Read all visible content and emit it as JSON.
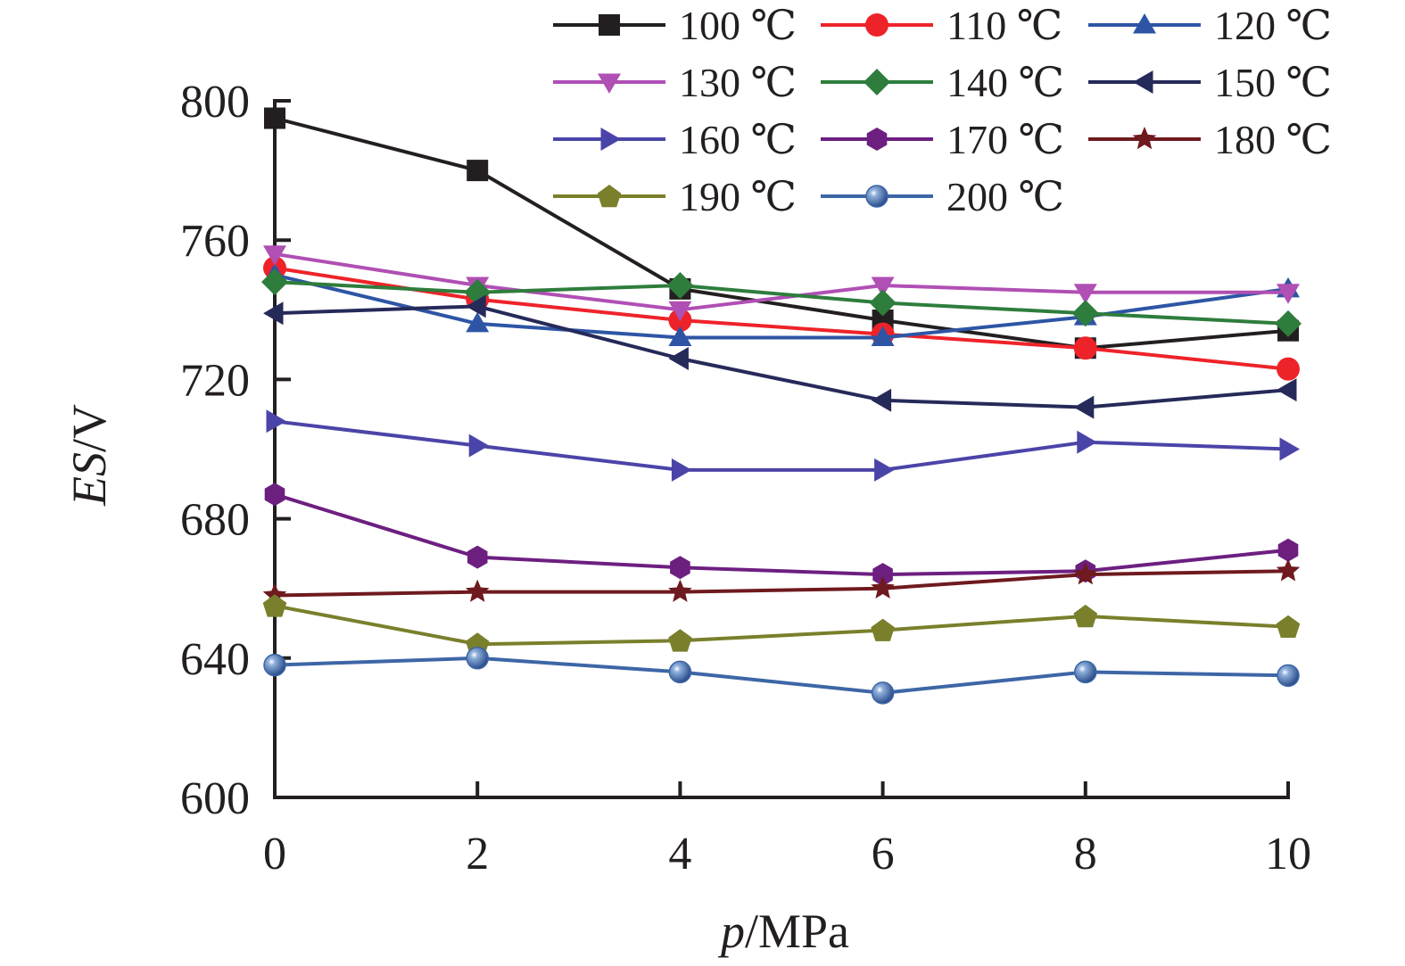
{
  "chart_data": {
    "type": "line",
    "xlabel_var": "p",
    "xlabel_unit": "/MPa",
    "ylabel_var": "ES",
    "ylabel_unit": "/V",
    "x": [
      0,
      2,
      4,
      6,
      8,
      10
    ],
    "xlim": [
      0,
      10
    ],
    "ylim": [
      600,
      800
    ],
    "x_ticks": [
      "0",
      "2",
      "4",
      "6",
      "8",
      "10"
    ],
    "y_ticks": [
      "600",
      "640",
      "680",
      "720",
      "760",
      "800"
    ],
    "grid": false,
    "legend_position": "top",
    "series": [
      {
        "name": "100 ℃",
        "marker": "square",
        "color": "#231f20",
        "values": [
          795,
          780,
          746,
          737,
          729,
          734
        ]
      },
      {
        "name": "110 ℃",
        "marker": "circle",
        "color": "#ee2329",
        "values": [
          752,
          743,
          737,
          733,
          729,
          723
        ]
      },
      {
        "name": "120 ℃",
        "marker": "triangle-up",
        "color": "#2e55a5",
        "values": [
          750,
          736,
          732,
          732,
          738,
          746
        ]
      },
      {
        "name": "130 ℃",
        "marker": "triangle-down",
        "color": "#b04fb4",
        "values": [
          756,
          747,
          740,
          747,
          745,
          745
        ]
      },
      {
        "name": "140 ℃",
        "marker": "diamond",
        "color": "#2e7d3c",
        "values": [
          748,
          745,
          747,
          742,
          739,
          736
        ]
      },
      {
        "name": "150 ℃",
        "marker": "triangle-left",
        "color": "#262a59",
        "values": [
          739,
          741,
          726,
          714,
          712,
          717
        ]
      },
      {
        "name": "160 ℃",
        "marker": "triangle-right",
        "color": "#4b44a8",
        "values": [
          708,
          701,
          694,
          694,
          702,
          700
        ]
      },
      {
        "name": "170 ℃",
        "marker": "hexagon",
        "color": "#6d1f80",
        "values": [
          687,
          669,
          666,
          664,
          665,
          671
        ]
      },
      {
        "name": "180 ℃",
        "marker": "star",
        "color": "#6e1a1e",
        "values": [
          658,
          659,
          659,
          660,
          664,
          665
        ]
      },
      {
        "name": "190 ℃",
        "marker": "pentagon",
        "color": "#7a7f2b",
        "values": [
          655,
          644,
          645,
          648,
          652,
          649
        ]
      },
      {
        "name": "200 ℃",
        "marker": "ball",
        "color": "#3d66a6",
        "values": [
          638,
          640,
          636,
          630,
          636,
          635
        ]
      }
    ]
  }
}
